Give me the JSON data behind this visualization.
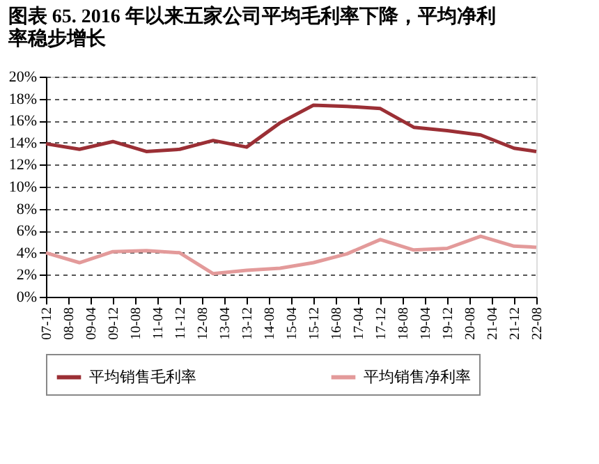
{
  "chart_data": {
    "type": "line",
    "title": "图表 65. 2016 年以来五家公司平均毛利率下降，平均净利率稳步增长",
    "x": [
      "2007-12",
      "2008-12",
      "2009-12",
      "2010-12",
      "2011-12",
      "2012-12",
      "2013-12",
      "2014-12",
      "2015-12",
      "2016-12",
      "2017-12",
      "2018-12",
      "2019-12",
      "2020-12",
      "2021-12",
      "2022-08"
    ],
    "series": [
      {
        "name": "平均销售毛利率",
        "color": "#9b2f35",
        "values": [
          13.9,
          13.4,
          14.1,
          13.2,
          13.4,
          14.2,
          13.6,
          15.8,
          17.4,
          17.3,
          17.1,
          15.4,
          15.1,
          14.7,
          13.5,
          13.2
        ]
      },
      {
        "name": "平均销售净利率",
        "color": "#e39a9a",
        "values": [
          4.0,
          3.1,
          4.1,
          4.2,
          4.0,
          2.1,
          2.4,
          2.6,
          3.1,
          3.9,
          5.2,
          4.25,
          4.4,
          5.5,
          4.6,
          4.5
        ]
      }
    ],
    "xlim": [
      "2007-12",
      "2022-08"
    ],
    "xticks": [
      {
        "value": "2007-12",
        "label": "07-12"
      },
      {
        "value": "2008-08",
        "label": "08-08"
      },
      {
        "value": "2009-04",
        "label": "09-04"
      },
      {
        "value": "2009-12",
        "label": "09-12"
      },
      {
        "value": "2010-08",
        "label": "10-08"
      },
      {
        "value": "2011-04",
        "label": "11-04"
      },
      {
        "value": "2011-12",
        "label": "11-12"
      },
      {
        "value": "2012-08",
        "label": "12-08"
      },
      {
        "value": "2013-04",
        "label": "13-04"
      },
      {
        "value": "2013-12",
        "label": "13-12"
      },
      {
        "value": "2014-08",
        "label": "14-08"
      },
      {
        "value": "2015-04",
        "label": "15-04"
      },
      {
        "value": "2015-12",
        "label": "15-12"
      },
      {
        "value": "2016-08",
        "label": "16-08"
      },
      {
        "value": "2017-04",
        "label": "17-04"
      },
      {
        "value": "2017-12",
        "label": "17-12"
      },
      {
        "value": "2018-08",
        "label": "18-08"
      },
      {
        "value": "2019-04",
        "label": "19-04"
      },
      {
        "value": "2019-12",
        "label": "19-12"
      },
      {
        "value": "2020-08",
        "label": "20-08"
      },
      {
        "value": "2021-04",
        "label": "21-04"
      },
      {
        "value": "2021-12",
        "label": "21-12"
      },
      {
        "value": "2022-08",
        "label": "22-08"
      }
    ],
    "ylim": [
      0,
      20
    ],
    "yticks": [
      {
        "value": 0,
        "label": "0%"
      },
      {
        "value": 2,
        "label": "2%"
      },
      {
        "value": 4,
        "label": "4%"
      },
      {
        "value": 6,
        "label": "6%"
      },
      {
        "value": 8,
        "label": "8%"
      },
      {
        "value": 10,
        "label": "10%"
      },
      {
        "value": 12,
        "label": "12%"
      },
      {
        "value": 14,
        "label": "14%"
      },
      {
        "value": 16,
        "label": "16%"
      },
      {
        "value": 18,
        "label": "18%"
      },
      {
        "value": 20,
        "label": "20%"
      }
    ],
    "grid": "y",
    "legend": "bottom",
    "marker": "none",
    "line_style": "solid"
  }
}
